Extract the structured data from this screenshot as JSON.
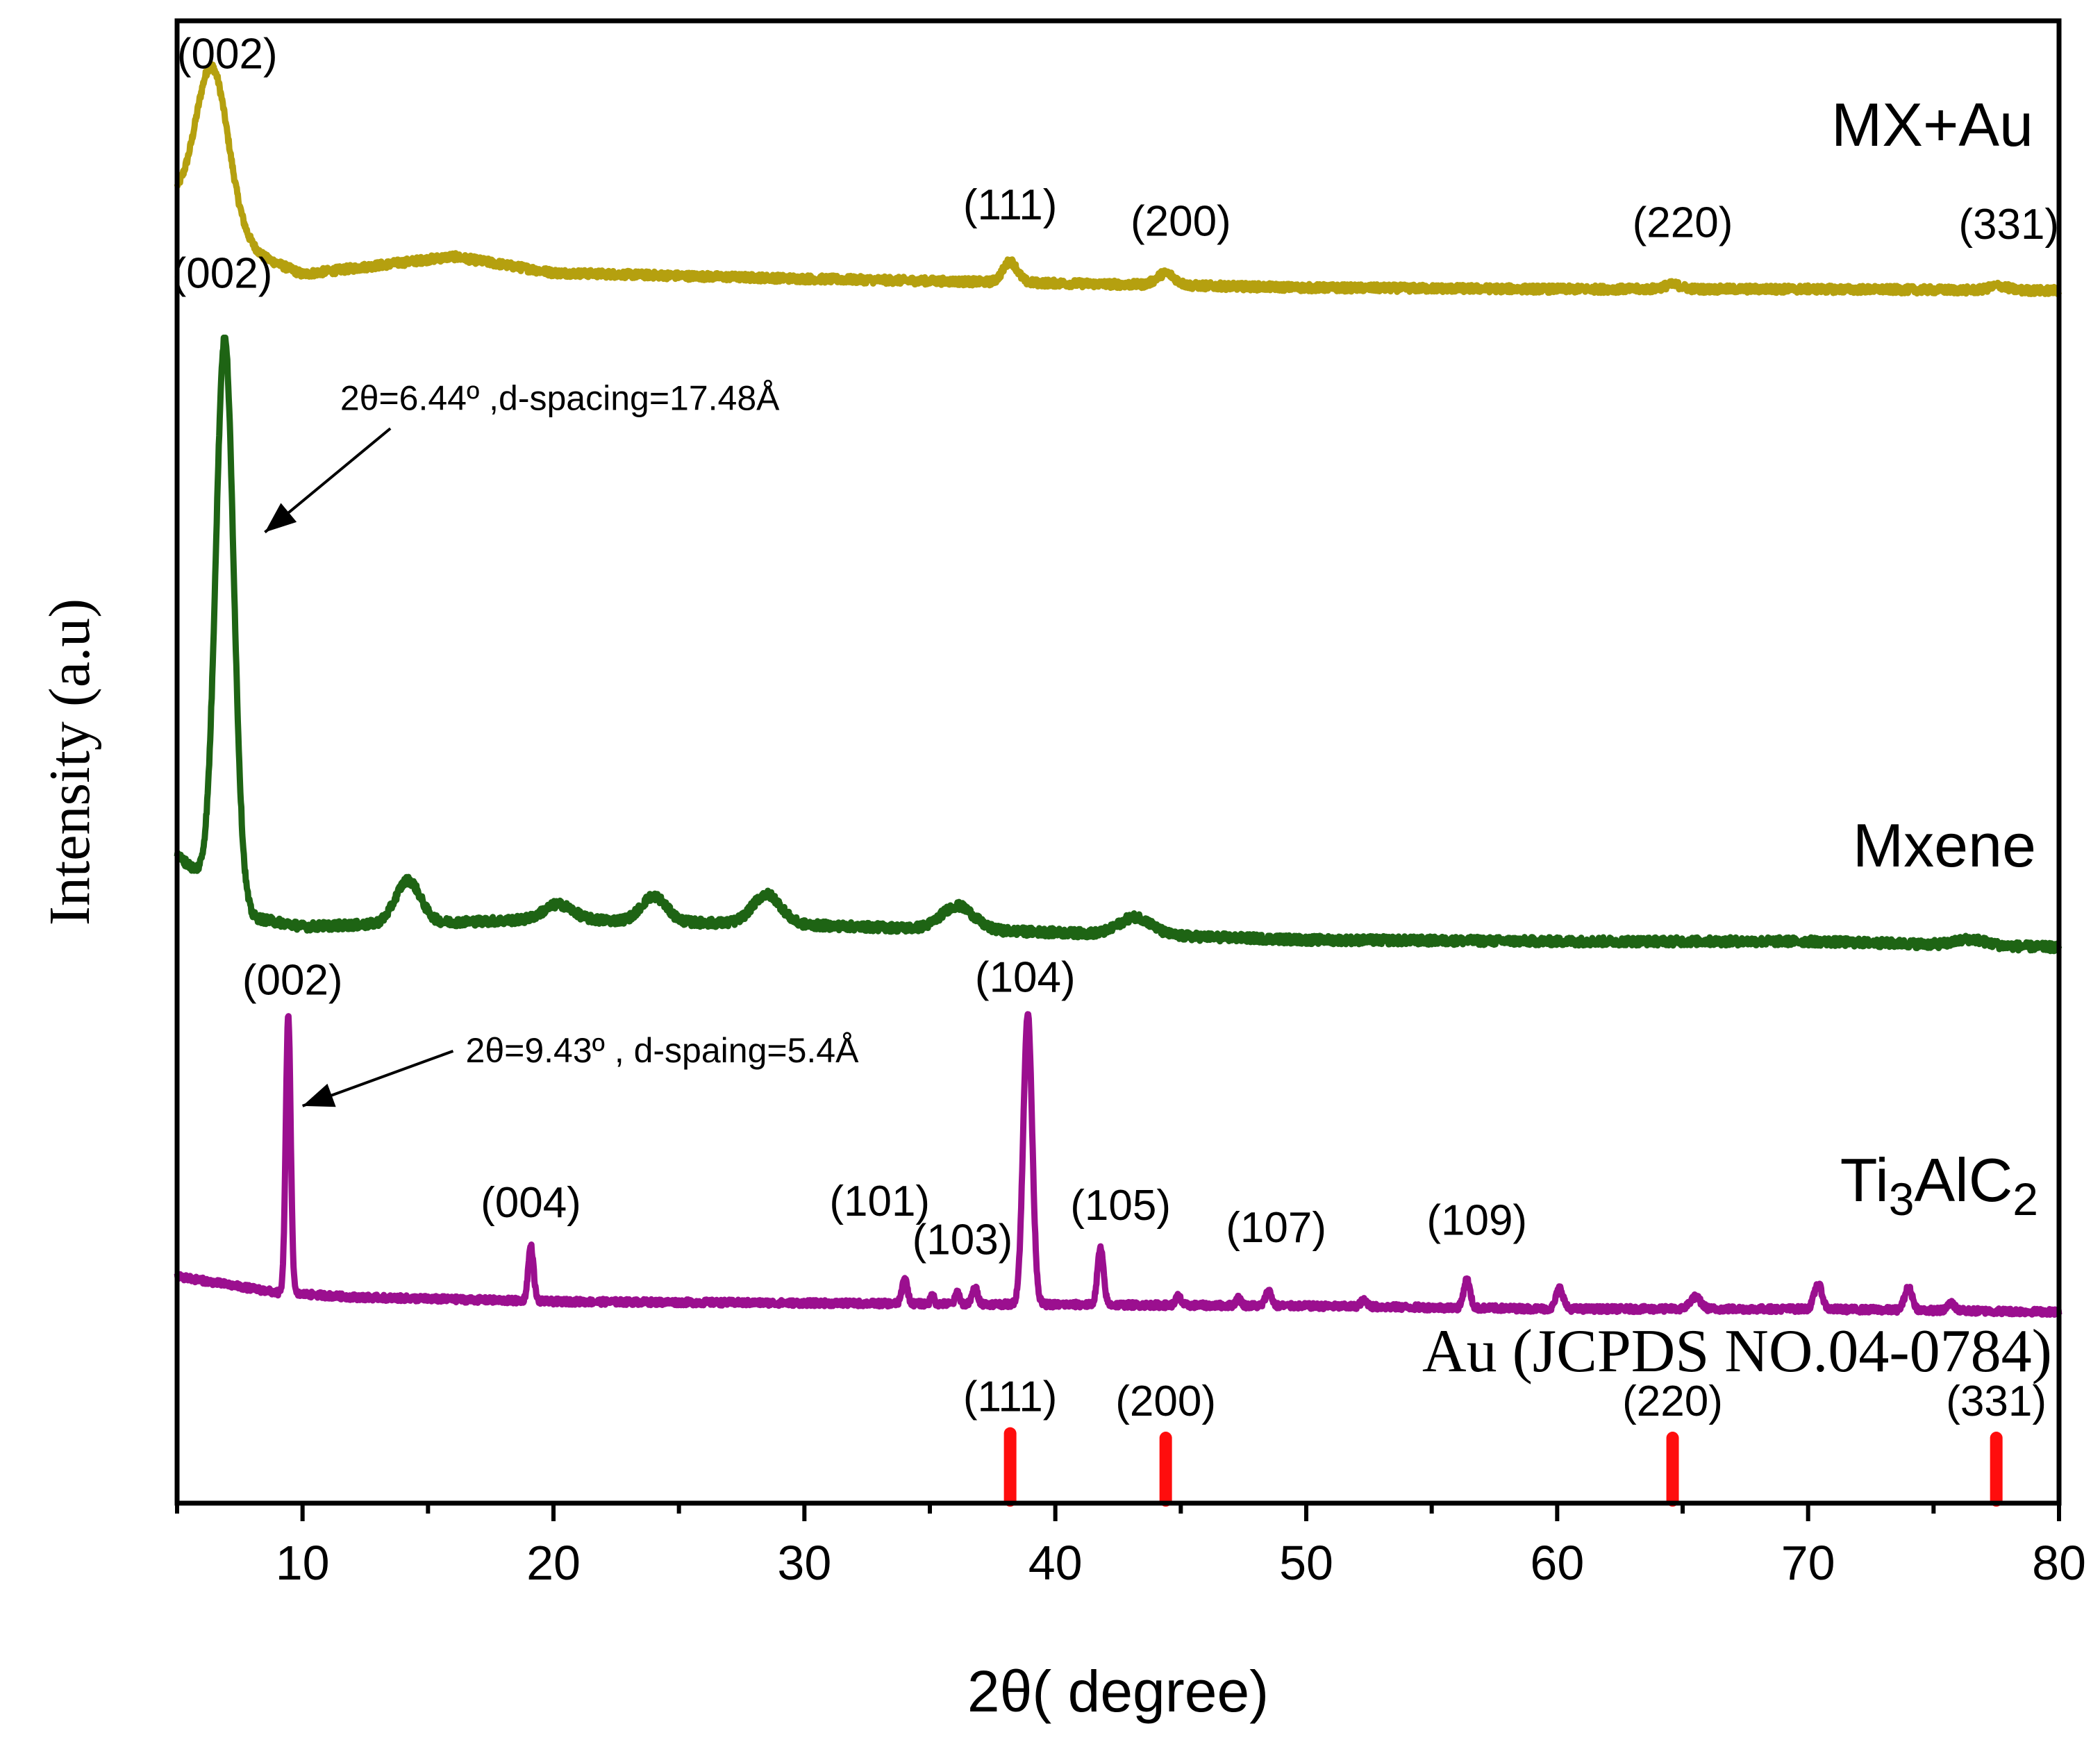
{
  "chart_data": {
    "type": "line",
    "title": "",
    "xlabel": "2θ( degree)",
    "ylabel": "Intensity (a.u)",
    "xlim": [
      5,
      80
    ],
    "xticks": [
      10,
      20,
      30,
      40,
      50,
      60,
      70,
      80
    ],
    "tick_labels": [
      "10",
      "20",
      "30",
      "40",
      "50",
      "60",
      "70",
      "80"
    ],
    "ylim": [
      0,
      100
    ],
    "grid": false,
    "colors": {
      "axis": "#000000",
      "mx_au": "#b5a00f",
      "mxene": "#1e6414",
      "ti3alc2": "#9b0f8f",
      "reference": "#ff0d0d"
    },
    "series": [
      {
        "key": "mx_au",
        "name": "MX+Au",
        "color": "#b5a00f",
        "baseline": [
          [
            5,
            88.0
          ],
          [
            8.5,
            84.0
          ],
          [
            10,
            82.9
          ],
          [
            16,
            84.1
          ],
          [
            20,
            83.0
          ],
          [
            30,
            82.6
          ],
          [
            40,
            82.3
          ],
          [
            50,
            82.0
          ],
          [
            60,
            81.9
          ],
          [
            70,
            81.9
          ],
          [
            80,
            81.8
          ]
        ],
        "peaks": [
          {
            "x": 6.4,
            "h": 10.5,
            "w": 0.9
          },
          {
            "x": 38.2,
            "h": 1.4,
            "w": 0.4
          },
          {
            "x": 44.4,
            "h": 0.8,
            "w": 0.5
          },
          {
            "x": 64.6,
            "h": 0.3,
            "w": 0.5
          },
          {
            "x": 77.6,
            "h": 0.3,
            "w": 0.5
          }
        ],
        "noise": 0.25
      },
      {
        "key": "mxene",
        "name": "Mxene",
        "label_parts": [
          "Mxene"
        ],
        "color": "#1e6414",
        "baseline": [
          [
            5,
            43.7
          ],
          [
            8,
            39.5
          ],
          [
            10,
            38.9
          ],
          [
            20,
            39.4
          ],
          [
            30,
            39.0
          ],
          [
            40,
            38.5
          ],
          [
            50,
            38.0
          ],
          [
            60,
            37.9
          ],
          [
            70,
            37.9
          ],
          [
            80,
            37.5
          ]
        ],
        "peaks": [
          {
            "x": 6.9,
            "h": 37.5,
            "w": 0.5
          },
          {
            "x": 14.2,
            "h": 2.9,
            "w": 0.7
          },
          {
            "x": 20.2,
            "h": 1.0,
            "w": 0.8
          },
          {
            "x": 24.0,
            "h": 1.7,
            "w": 0.7
          },
          {
            "x": 28.5,
            "h": 2.0,
            "w": 0.8
          },
          {
            "x": 36.1,
            "h": 1.6,
            "w": 0.9
          },
          {
            "x": 43.2,
            "h": 1.2,
            "w": 0.9
          },
          {
            "x": 76.5,
            "h": 0.4,
            "w": 0.8
          }
        ],
        "noise": 0.28
      },
      {
        "key": "ti3alc2",
        "name": "Ti3AlC2",
        "label_parts": [
          "Ti",
          "3",
          "AlC",
          "2"
        ],
        "color": "#9b0f8f",
        "baseline": [
          [
            5,
            15.3
          ],
          [
            9,
            14.2
          ],
          [
            12,
            13.9
          ],
          [
            20,
            13.6
          ],
          [
            30,
            13.5
          ],
          [
            40,
            13.4
          ],
          [
            50,
            13.3
          ],
          [
            60,
            13.1
          ],
          [
            70,
            13.1
          ],
          [
            80,
            12.9
          ]
        ],
        "peaks": [
          {
            "x": 9.43,
            "h": 18.6,
            "w": 0.14
          },
          {
            "x": 19.1,
            "h": 3.7,
            "w": 0.15
          },
          {
            "x": 34.0,
            "h": 1.7,
            "w": 0.15
          },
          {
            "x": 35.1,
            "h": 0.6,
            "w": 0.1
          },
          {
            "x": 36.1,
            "h": 0.8,
            "w": 0.12
          },
          {
            "x": 36.8,
            "h": 1.1,
            "w": 0.15
          },
          {
            "x": 38.9,
            "h": 19.6,
            "w": 0.25
          },
          {
            "x": 41.8,
            "h": 3.8,
            "w": 0.17
          },
          {
            "x": 44.9,
            "h": 0.6,
            "w": 0.15
          },
          {
            "x": 47.3,
            "h": 0.5,
            "w": 0.15
          },
          {
            "x": 48.5,
            "h": 1.0,
            "w": 0.17
          },
          {
            "x": 52.3,
            "h": 0.4,
            "w": 0.2
          },
          {
            "x": 56.4,
            "h": 1.9,
            "w": 0.18
          },
          {
            "x": 60.1,
            "h": 1.4,
            "w": 0.2
          },
          {
            "x": 65.5,
            "h": 0.8,
            "w": 0.3
          },
          {
            "x": 70.4,
            "h": 1.7,
            "w": 0.22
          },
          {
            "x": 74.0,
            "h": 1.5,
            "w": 0.22
          },
          {
            "x": 75.7,
            "h": 0.5,
            "w": 0.2
          }
        ],
        "noise": 0.2
      }
    ],
    "reference": {
      "name": "Au (JCPDS NO.04-0784)",
      "color": "#ff0d0d",
      "baseline": 0,
      "sticks": [
        {
          "x": 38.2,
          "h": 4.7,
          "label": "(111)"
        },
        {
          "x": 44.4,
          "h": 4.4,
          "label": "(200)"
        },
        {
          "x": 64.6,
          "h": 4.4,
          "label": "(220)"
        },
        {
          "x": 77.5,
          "h": 4.4,
          "label": "(331)"
        }
      ]
    },
    "annotations": [
      {
        "series": "mx_au",
        "x": 7.0,
        "y": 96.8,
        "text": "(002)"
      },
      {
        "series": "mx_au",
        "x": 38.2,
        "y": 86.6,
        "text": "(111)"
      },
      {
        "series": "mx_au",
        "x": 45.0,
        "y": 85.5,
        "text": "(200)"
      },
      {
        "series": "mx_au",
        "x": 65.0,
        "y": 85.4,
        "text": "(220)"
      },
      {
        "series": "mx_au",
        "x": 78.0,
        "y": 85.3,
        "text": "(331)"
      },
      {
        "series": "mxene",
        "x": 6.8,
        "y": 82.0,
        "text": "(002)"
      },
      {
        "series": "ti3alc2",
        "x": 9.6,
        "y": 34.3,
        "text": "(002)"
      },
      {
        "series": "ti3alc2",
        "x": 38.8,
        "y": 34.5,
        "text": "(104)"
      },
      {
        "series": "ti3alc2",
        "x": 19.1,
        "y": 19.3,
        "text": "(004)"
      },
      {
        "series": "ti3alc2",
        "x": 33.0,
        "y": 19.4,
        "text": "(101)"
      },
      {
        "series": "ti3alc2",
        "x": 36.3,
        "y": 16.8,
        "text": "(103)"
      },
      {
        "series": "ti3alc2",
        "x": 42.6,
        "y": 19.1,
        "text": "(105)"
      },
      {
        "series": "ti3alc2",
        "x": 48.8,
        "y": 17.6,
        "text": "(107)"
      },
      {
        "series": "ti3alc2",
        "x": 56.8,
        "y": 18.1,
        "text": "(109)"
      }
    ],
    "arrows": [
      {
        "text": "2θ=6.44º ,d-spacing=17.48Å",
        "from": [
          13.5,
          72.5
        ],
        "to": [
          8.5,
          65.5
        ],
        "label_at": [
          11.5,
          74.5
        ]
      },
      {
        "text": "2θ=9.43º , d-spaing=5.4Å",
        "from": [
          16.0,
          30.5
        ],
        "to": [
          10.0,
          26.8
        ],
        "label_at": [
          16.5,
          30.5
        ]
      }
    ]
  }
}
